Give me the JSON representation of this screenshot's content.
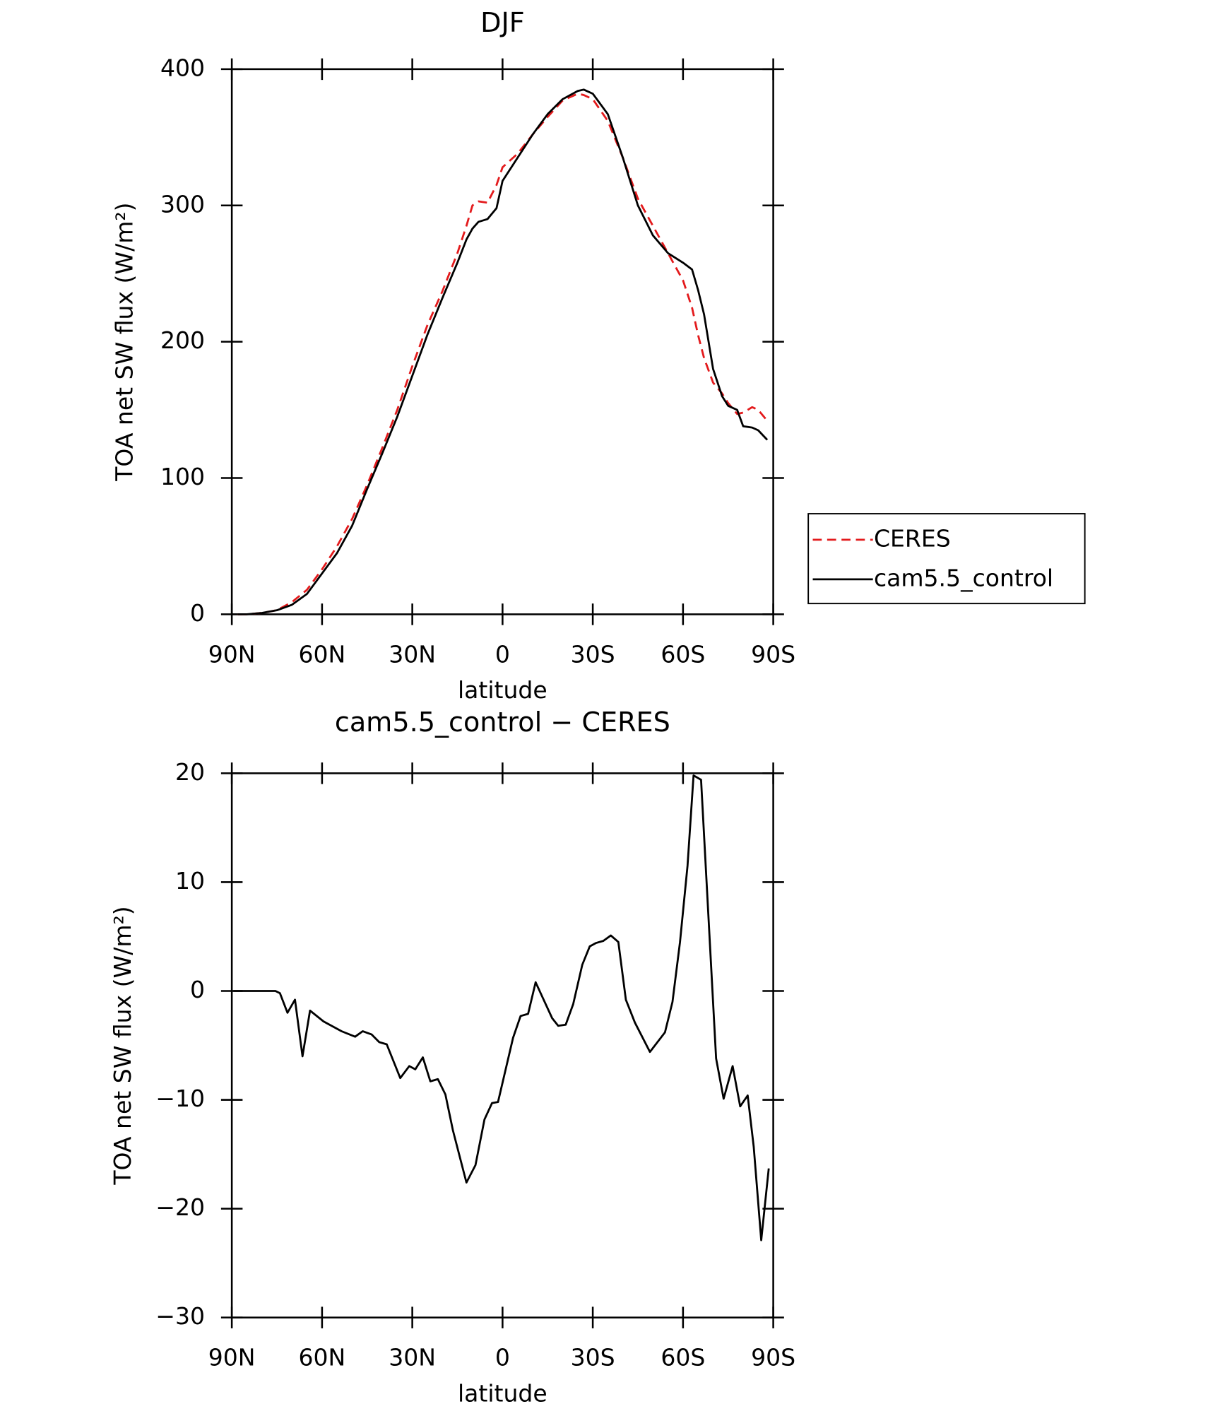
{
  "chart_data": [
    {
      "type": "line",
      "title": "DJF",
      "x_label": "latitude",
      "y_label": "TOA net SW flux (W/m²)",
      "x": [
        88,
        85,
        80,
        75,
        70,
        65,
        60,
        55,
        50,
        45,
        40,
        35,
        30,
        25,
        20,
        15,
        12,
        10,
        8,
        5,
        2,
        0,
        -5,
        -10,
        -15,
        -20,
        -25,
        -27,
        -30,
        -35,
        -40,
        -45,
        -50,
        -55,
        -60,
        -63,
        -65,
        -67,
        -70,
        -73,
        -75,
        -78,
        -80,
        -83,
        -85,
        -88
      ],
      "series": [
        {
          "name": "CERES",
          "color": "#e31a1c",
          "dashed": true,
          "values": [
            0,
            0,
            1,
            3,
            9,
            18,
            33,
            50,
            70,
            95,
            122,
            150,
            182,
            212,
            237,
            265,
            285,
            300,
            303,
            302,
            315,
            328,
            338,
            352,
            365,
            377,
            382,
            381,
            378,
            362,
            335,
            305,
            285,
            265,
            245,
            225,
            205,
            188,
            170,
            162,
            155,
            147,
            148,
            152,
            150,
            142
          ]
        },
        {
          "name": "cam5.5_control",
          "color": "#000000",
          "dashed": false,
          "values": [
            0,
            0,
            1,
            3,
            7,
            15,
            30,
            45,
            65,
            92,
            118,
            145,
            175,
            205,
            232,
            258,
            275,
            283,
            288,
            290,
            298,
            318,
            335,
            352,
            367,
            378,
            384,
            385,
            382,
            367,
            335,
            300,
            278,
            265,
            258,
            253,
            238,
            220,
            180,
            160,
            153,
            150,
            138,
            137,
            135,
            128
          ]
        }
      ],
      "xlim": [
        90,
        -90
      ],
      "xticks": [
        {
          "value": 90,
          "label": "90N"
        },
        {
          "value": 60,
          "label": "60N"
        },
        {
          "value": 30,
          "label": "30N"
        },
        0,
        {
          "value": -30,
          "label": "30S"
        },
        {
          "value": -60,
          "label": "60S"
        },
        {
          "value": -90,
          "label": "90S"
        }
      ],
      "ylim": [
        0,
        400
      ],
      "yticks": [
        0,
        100,
        200,
        300,
        400
      ],
      "legend": "right"
    },
    {
      "type": "line",
      "title": "cam5.5_control − CERES",
      "x_label": "latitude",
      "y_label": "TOA net SW flux (W/m²)",
      "x": [
        89.5,
        75.5,
        74,
        71.5,
        69,
        66.5,
        64,
        59.5,
        53.5,
        49,
        46.5,
        43.5,
        41,
        38.5,
        34,
        31,
        29,
        26.5,
        24,
        21.5,
        19,
        16.5,
        12,
        9,
        6,
        3.5,
        1.5,
        -3.5,
        -6,
        -8.5,
        -11,
        -13.5,
        -16.5,
        -18.5,
        -21,
        -23.5,
        -26.5,
        -29,
        -31,
        -33.5,
        -36,
        -38.5,
        -41,
        -44,
        -49,
        -54,
        -56.5,
        -59,
        -61.5,
        -63.5,
        -66,
        -71,
        -73.5,
        -76.5,
        -79,
        -81.5,
        -83.5,
        -86,
        -88.5
      ],
      "values": [
        0,
        0,
        -0.2,
        -2,
        -0.8,
        -6,
        -1.8,
        -2.8,
        -3.7,
        -4.2,
        -3.7,
        -4,
        -4.7,
        -4.9,
        -8,
        -6.9,
        -7.2,
        -6.1,
        -8.3,
        -8.1,
        -9.5,
        -12.8,
        -17.6,
        -16,
        -11.8,
        -10.3,
        -10.2,
        -4.3,
        -2.3,
        -2.1,
        0.8,
        -0.7,
        -2.5,
        -3.2,
        -3.1,
        -1.2,
        2.4,
        4.1,
        4.4,
        4.6,
        5.1,
        4.5,
        -0.8,
        -2.9,
        -5.6,
        -3.8,
        -1,
        4.5,
        11.5,
        19.8,
        19.4,
        -6.2,
        -9.9,
        -6.9,
        -10.6,
        -9.6,
        -14.3,
        -22.9,
        -16.3
      ],
      "color": "#000000",
      "xlim": [
        90,
        -90
      ],
      "xticks": [
        {
          "value": 90,
          "label": "90N"
        },
        {
          "value": 60,
          "label": "60N"
        },
        {
          "value": 30,
          "label": "30N"
        },
        0,
        {
          "value": -30,
          "label": "30S"
        },
        {
          "value": -60,
          "label": "60S"
        },
        {
          "value": -90,
          "label": "90S"
        }
      ],
      "ylim": [
        -30,
        20
      ],
      "yticks": [
        {
          "value": -30,
          "label": "−30"
        },
        {
          "value": -20,
          "label": "−20"
        },
        {
          "value": -10,
          "label": "−10"
        },
        0,
        10,
        20
      ]
    }
  ]
}
